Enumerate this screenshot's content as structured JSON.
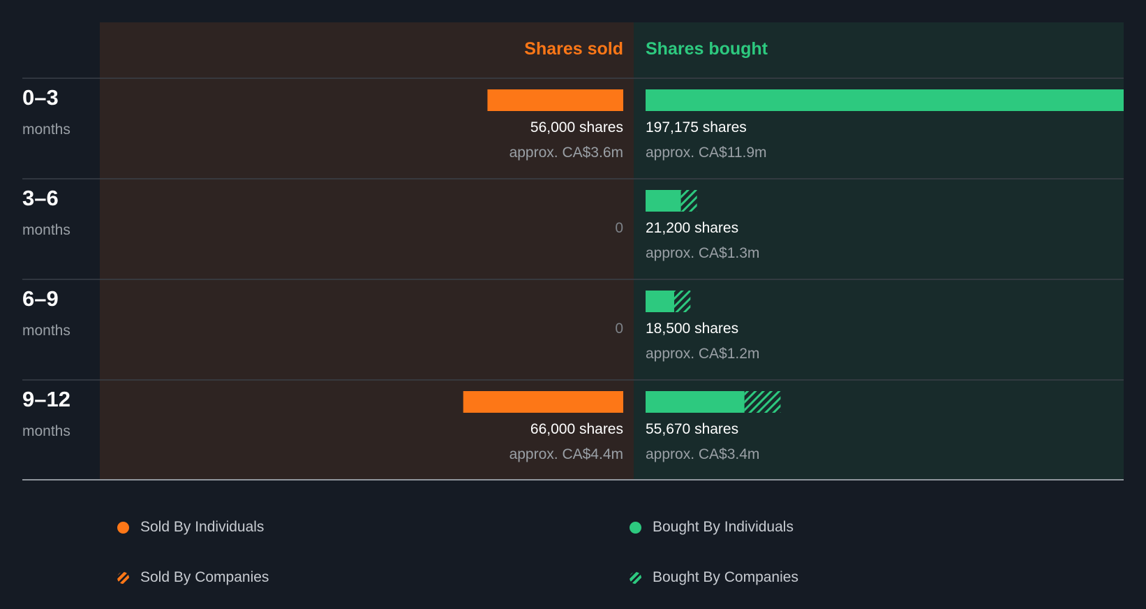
{
  "colors": {
    "background": "#151b24",
    "sold_panel": "#2e2422",
    "bought_panel": "#182b2b",
    "sold": "#fd7717",
    "bought": "#2dc97f",
    "divider": "#3a4048",
    "muted": "#9aa0a6",
    "zero": "#7d8288"
  },
  "chart_data": {
    "type": "bar",
    "headers": {
      "sold": "Shares sold",
      "bought": "Shares bought"
    },
    "rows": [
      {
        "period": "0–3",
        "unit": "months",
        "sold": {
          "individuals": 56000,
          "companies": 0,
          "shares_label": "56,000 shares",
          "value_label": "approx. CA$3.6m"
        },
        "bought": {
          "individuals": 197175,
          "companies": 0,
          "shares_label": "197,175 shares",
          "value_label": "approx. CA$11.9m"
        }
      },
      {
        "period": "3–6",
        "unit": "months",
        "sold": {
          "individuals": 0,
          "companies": 0,
          "shares_label": "0",
          "value_label": ""
        },
        "bought": {
          "individuals": 14600,
          "companies": 6600,
          "shares_label": "21,200 shares",
          "value_label": "approx. CA$1.3m"
        }
      },
      {
        "period": "6–9",
        "unit": "months",
        "sold": {
          "individuals": 0,
          "companies": 0,
          "shares_label": "0",
          "value_label": ""
        },
        "bought": {
          "individuals": 11800,
          "companies": 6700,
          "shares_label": "18,500 shares",
          "value_label": "approx. CA$1.2m"
        }
      },
      {
        "period": "9–12",
        "unit": "months",
        "sold": {
          "individuals": 66000,
          "companies": 0,
          "shares_label": "66,000 shares",
          "value_label": "approx. CA$4.4m"
        },
        "bought": {
          "individuals": 40800,
          "companies": 14870,
          "shares_label": "55,670 shares",
          "value_label": "approx. CA$3.4m"
        }
      }
    ],
    "legend": [
      {
        "label": "Sold By Individuals",
        "color": "#fd7717",
        "pattern": "solid"
      },
      {
        "label": "Bought By Individuals",
        "color": "#2dc97f",
        "pattern": "solid"
      },
      {
        "label": "Sold By Companies",
        "color": "#fd7717",
        "pattern": "hatched"
      },
      {
        "label": "Bought By Companies",
        "color": "#2dc97f",
        "pattern": "hatched"
      }
    ]
  }
}
